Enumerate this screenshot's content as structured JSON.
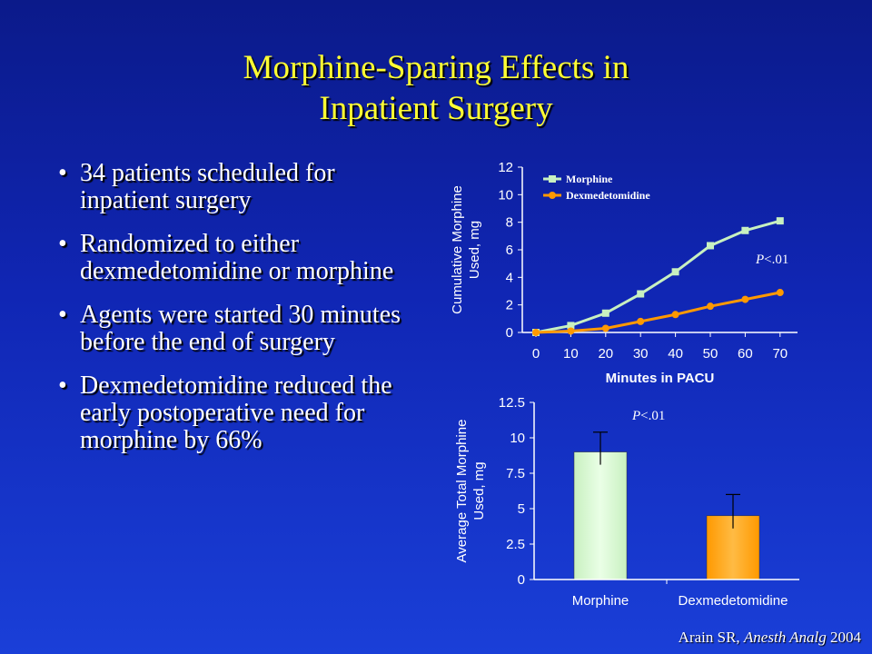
{
  "slide": {
    "title_line1": "Morphine-Sparing Effects in",
    "title_line2": "Inpatient Surgery",
    "bullets": [
      "34 patients scheduled for inpatient surgery",
      "Randomized to either dexmedetomidine or morphine",
      "Agents were started 30 minutes before the end of surgery",
      "Dexmedetomidine reduced the early postoperative need for morphine by 66%"
    ],
    "citation_author": "Arain SR, ",
    "citation_journal": "Anesth Analg",
    "citation_year": " 2004"
  },
  "colors": {
    "background": "#1026b4",
    "title": "#ffff33",
    "morphine": "#c8f0c0",
    "dexmedetomidine": "#ff9900"
  },
  "chart_data": [
    {
      "type": "line",
      "xlabel": "Minutes in PACU",
      "ylabel_line1": "Cumulative Morphine",
      "ylabel_line2": "Used, mg",
      "x": [
        0,
        10,
        20,
        30,
        40,
        50,
        60,
        70
      ],
      "x_ticks": [
        "0",
        "10",
        "20",
        "30",
        "40",
        "50",
        "60",
        "70"
      ],
      "ylim": [
        0,
        12
      ],
      "y_ticks": [
        "0",
        "2",
        "4",
        "6",
        "8",
        "10",
        "12"
      ],
      "series": [
        {
          "name": "Morphine",
          "marker": "square",
          "color": "#c8f0c0",
          "values": [
            0,
            0.5,
            1.4,
            2.8,
            4.4,
            6.3,
            7.4,
            8.1
          ]
        },
        {
          "name": "Dexmedetomidine",
          "marker": "circle",
          "color": "#ff9900",
          "values": [
            0,
            0.1,
            0.3,
            0.8,
            1.3,
            1.9,
            2.4,
            2.9
          ]
        }
      ],
      "annotation": "P<.01",
      "legend": "top-left"
    },
    {
      "type": "bar",
      "ylabel_line1": "Average Total Morphine",
      "ylabel_line2": "Used, mg",
      "categories": [
        "Morphine",
        "Dexmedetomidine"
      ],
      "values": [
        9.0,
        4.5
      ],
      "error_upper": [
        10.4,
        6.0
      ],
      "colors": [
        "#c8f0c0",
        "#ff9900"
      ],
      "ylim": [
        0,
        12.5
      ],
      "y_ticks": [
        "0",
        "2.5",
        "5",
        "7.5",
        "10",
        "12.5"
      ],
      "annotation": "P<.01"
    }
  ]
}
